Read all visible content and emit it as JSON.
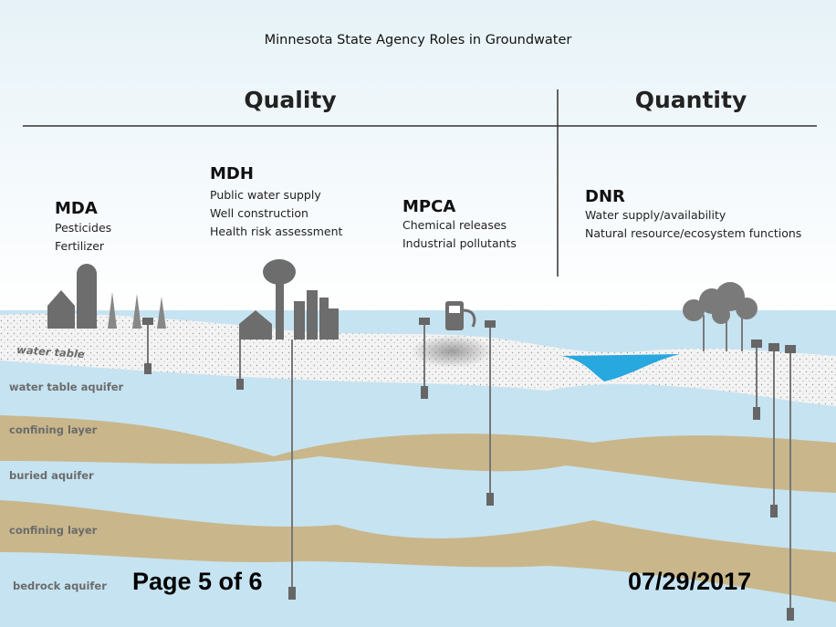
{
  "title": "Minnesota State Agency Roles in Groundwater",
  "sections": [
    "Quality",
    "Quantity"
  ],
  "agencies": [
    {
      "name": "MDA",
      "roles": [
        "Pesticides",
        "Fertilizer"
      ]
    },
    {
      "name": "MDH",
      "roles": [
        "Public water supply",
        "Well construction",
        "Health risk assessment"
      ]
    },
    {
      "name": "MPCA",
      "roles": [
        "Chemical releases",
        "Industrial pollutants"
      ]
    },
    {
      "name": "DNR",
      "roles": [
        "Water supply/availability",
        "Natural resource/ecosystem functions"
      ]
    }
  ],
  "layers": [
    "water table",
    "water table aquifer",
    "confining layer",
    "buried aquifer",
    "confining layer",
    "bedrock aquifer"
  ],
  "footer": {
    "page": "Page 5 of 6",
    "date": "07/29/2017"
  }
}
